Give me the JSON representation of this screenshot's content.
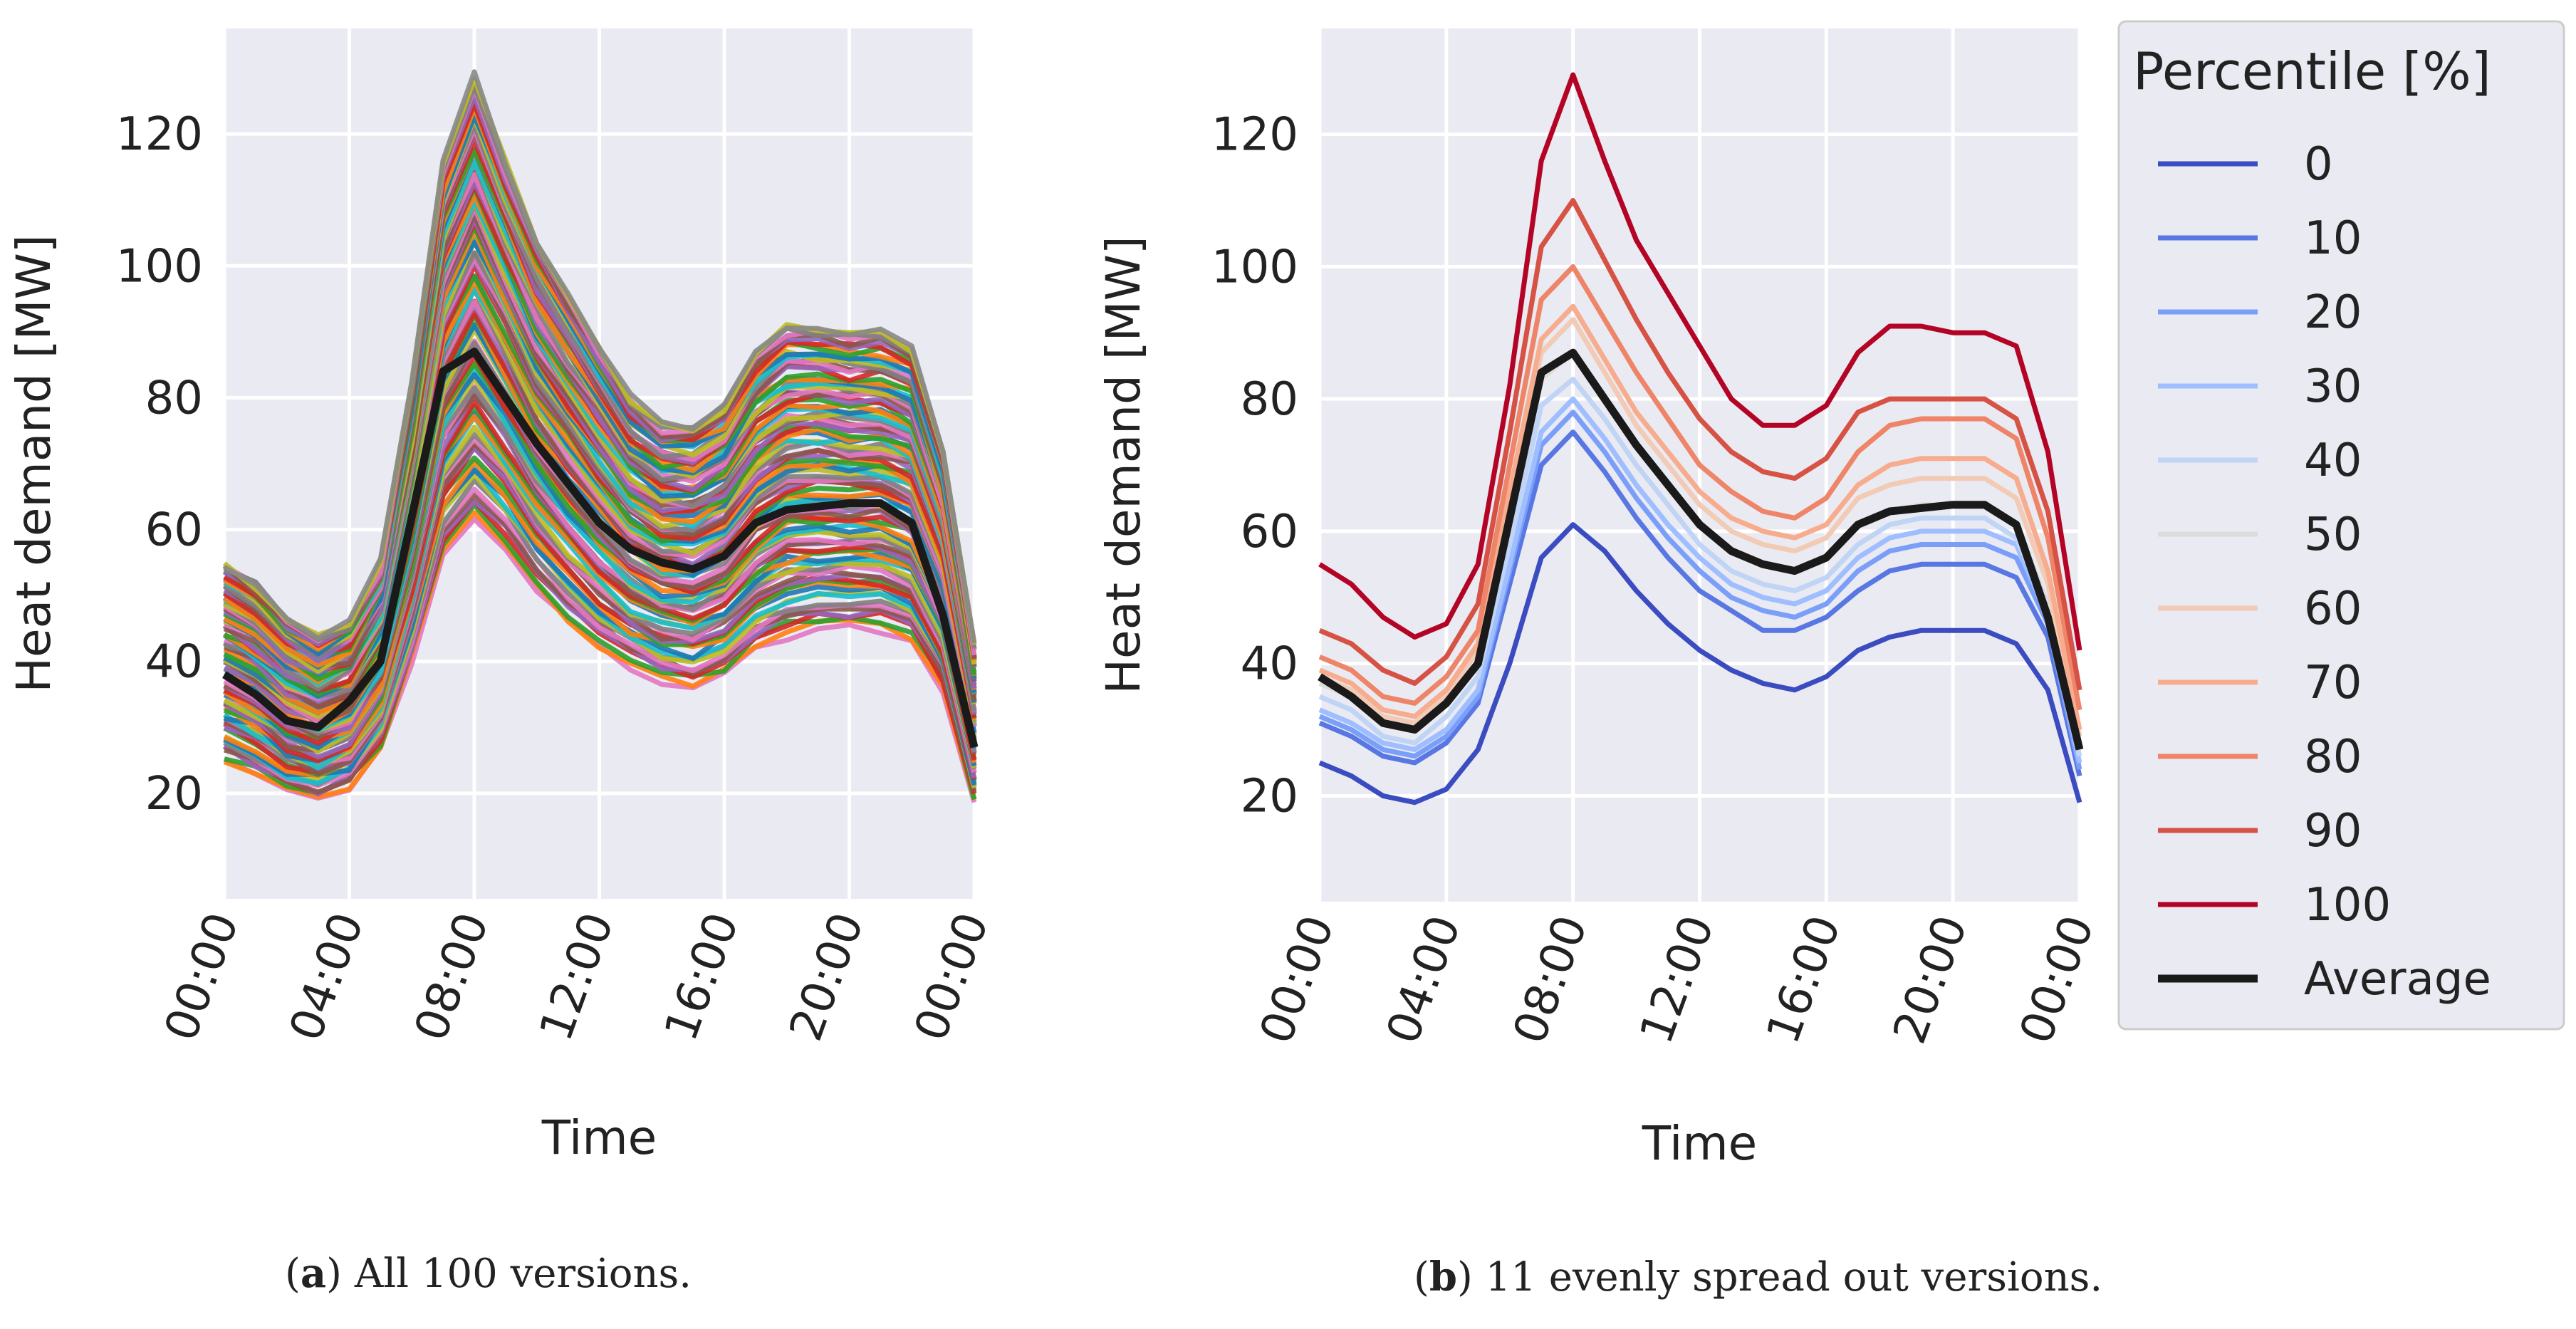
{
  "chart_data": [
    {
      "type": "line",
      "panel": "a",
      "xlabel": "Time",
      "ylabel": "Heat demand [MW]",
      "x_ticks": [
        "00:00",
        "04:00",
        "08:00",
        "12:00",
        "16:00",
        "20:00",
        "00:00"
      ],
      "y_ticks": [
        20,
        40,
        60,
        80,
        100,
        120
      ],
      "xlim": [
        0,
        24
      ],
      "ylim": [
        4,
        136
      ],
      "x": [
        0,
        1,
        2,
        3,
        4,
        5,
        6,
        7,
        8,
        9,
        10,
        11,
        12,
        13,
        14,
        15,
        16,
        17,
        18,
        19,
        20,
        21,
        22,
        23,
        24
      ],
      "average": [
        38,
        35,
        31,
        30,
        34,
        40,
        62,
        84,
        87,
        80,
        73,
        67,
        61,
        57,
        55,
        54,
        56,
        61,
        63,
        63.5,
        64,
        64,
        61,
        47,
        27
      ],
      "num_versions": 100,
      "series_note": "100 versions spread between the 0th and 100th percentile curves (unlabeled)",
      "max_series": [
        55,
        52,
        47,
        44,
        46,
        55,
        82,
        116,
        129,
        116,
        104,
        96,
        88,
        80,
        76,
        76,
        79,
        87,
        91,
        91,
        90,
        90,
        88,
        72,
        42
      ],
      "min_series": [
        25,
        23,
        20,
        19,
        21,
        27,
        40,
        56,
        61,
        57,
        51,
        46,
        42,
        39,
        37,
        36,
        38,
        42,
        44,
        45,
        45,
        45,
        43,
        36,
        19
      ]
    },
    {
      "type": "line",
      "panel": "b",
      "xlabel": "Time",
      "ylabel": "Heat demand [MW]",
      "x_ticks": [
        "00:00",
        "04:00",
        "08:00",
        "12:00",
        "16:00",
        "20:00",
        "00:00"
      ],
      "y_ticks": [
        20,
        40,
        60,
        80,
        100,
        120
      ],
      "xlim": [
        0,
        24
      ],
      "ylim": [
        4,
        136
      ],
      "x": [
        0,
        1,
        2,
        3,
        4,
        5,
        6,
        7,
        8,
        9,
        10,
        11,
        12,
        13,
        14,
        15,
        16,
        17,
        18,
        19,
        20,
        21,
        22,
        23,
        24
      ],
      "series": [
        {
          "name": "0",
          "color": "#3b4cc0",
          "values": [
            25,
            23,
            20,
            19,
            21,
            27,
            40,
            56,
            61,
            57,
            51,
            46,
            42,
            39,
            37,
            36,
            38,
            42,
            44,
            45,
            45,
            45,
            43,
            36,
            19
          ]
        },
        {
          "name": "10",
          "color": "#5977e3",
          "values": [
            31,
            29,
            26,
            25,
            28,
            34,
            52,
            70,
            75,
            69,
            62,
            56,
            51,
            48,
            45,
            45,
            47,
            51,
            54,
            55,
            55,
            55,
            53,
            44,
            23
          ]
        },
        {
          "name": "20",
          "color": "#7b9ff9",
          "values": [
            32,
            30,
            27,
            26,
            29,
            35,
            54,
            73,
            78,
            72,
            65,
            59,
            54,
            50,
            48,
            47,
            49,
            54,
            57,
            58,
            58,
            58,
            56,
            46,
            24
          ]
        },
        {
          "name": "30",
          "color": "#9ebeff",
          "values": [
            33,
            31,
            28,
            27,
            30,
            36,
            55,
            75,
            80,
            74,
            67,
            61,
            56,
            52,
            50,
            49,
            51,
            56,
            59,
            60,
            60,
            60,
            58,
            47,
            25
          ]
        },
        {
          "name": "40",
          "color": "#c0d4f5",
          "values": [
            35,
            33,
            29,
            28,
            32,
            38,
            58,
            79,
            83,
            77,
            70,
            64,
            58,
            54,
            52,
            51,
            53,
            58,
            61,
            62,
            62,
            62,
            59,
            48,
            26
          ]
        },
        {
          "name": "50",
          "color": "#dddcdc",
          "values": [
            37,
            35,
            31,
            30,
            34,
            40,
            62,
            83,
            87,
            80,
            73,
            67,
            61,
            57,
            55,
            54,
            56,
            61,
            63,
            64,
            64,
            64,
            61,
            49,
            27
          ]
        },
        {
          "name": "60",
          "color": "#f2cbb7",
          "values": [
            38,
            36,
            32,
            31,
            35,
            42,
            64,
            87,
            92,
            84,
            76,
            70,
            64,
            60,
            58,
            57,
            59,
            65,
            67,
            68,
            68,
            68,
            65,
            52,
            29
          ]
        },
        {
          "name": "70",
          "color": "#f7ac8e",
          "values": [
            39,
            37,
            33,
            32,
            36,
            43,
            66,
            89,
            94,
            86,
            78,
            72,
            66,
            62,
            60,
            59,
            61,
            67,
            70,
            71,
            71,
            71,
            68,
            54,
            30
          ]
        },
        {
          "name": "80",
          "color": "#ee8468",
          "values": [
            41,
            39,
            35,
            34,
            38,
            45,
            70,
            95,
            100,
            92,
            84,
            77,
            70,
            66,
            63,
            62,
            65,
            72,
            76,
            77,
            77,
            77,
            74,
            59,
            33
          ]
        },
        {
          "name": "90",
          "color": "#d65244",
          "values": [
            45,
            43,
            39,
            37,
            41,
            49,
            75,
            103,
            110,
            101,
            92,
            84,
            77,
            72,
            69,
            68,
            71,
            78,
            80,
            80,
            80,
            80,
            77,
            63,
            36
          ]
        },
        {
          "name": "100",
          "color": "#b40426",
          "values": [
            55,
            52,
            47,
            44,
            46,
            55,
            82,
            116,
            129,
            116,
            104,
            96,
            88,
            80,
            76,
            76,
            79,
            87,
            91,
            91,
            90,
            90,
            88,
            72,
            42
          ]
        },
        {
          "name": "Average",
          "color": "#1a1a1a",
          "values": [
            38,
            35,
            31,
            30,
            34,
            40,
            62,
            84,
            87,
            80,
            73,
            67,
            61,
            57,
            55,
            54,
            56,
            61,
            63,
            63.5,
            64,
            64,
            61,
            47,
            27
          ]
        }
      ],
      "legend": {
        "title": "Percentile [%]",
        "position": "outside-right"
      }
    }
  ],
  "captions": {
    "a_label": "a",
    "a_text": "All 100 versions.",
    "b_label": "b",
    "b_text": "11 evenly spread out versions."
  },
  "colors": {
    "axes_bg": "#eaeaf2",
    "grid": "#ffffff",
    "average": "#1a1a1a"
  }
}
